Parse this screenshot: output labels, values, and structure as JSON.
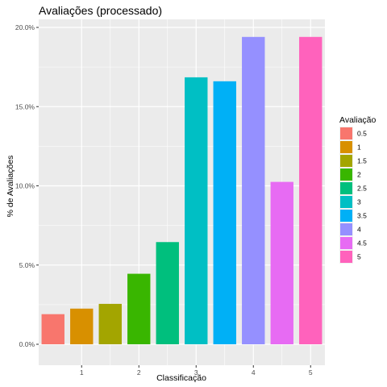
{
  "chart_data": {
    "type": "bar",
    "title": "Avaliações (processado)",
    "xlabel": "Classificação",
    "ylabel": "% de Avaliações",
    "x": [
      0.5,
      1,
      1.5,
      2,
      2.5,
      3,
      3.5,
      4,
      4.5,
      5
    ],
    "values": [
      1.9,
      2.25,
      2.55,
      4.45,
      6.45,
      16.85,
      16.6,
      19.4,
      10.25,
      19.4
    ],
    "xlim": [
      0.25,
      5.25
    ],
    "ylim": [
      0,
      20
    ],
    "x_ticks": [
      {
        "value": 1,
        "label": "1"
      },
      {
        "value": 2,
        "label": "2"
      },
      {
        "value": 3,
        "label": "3"
      },
      {
        "value": 4,
        "label": "4"
      },
      {
        "value": 5,
        "label": "5"
      }
    ],
    "y_ticks": [
      {
        "value": 0,
        "label": "0.0%"
      },
      {
        "value": 5,
        "label": "5.0%"
      },
      {
        "value": 10,
        "label": "10.0%"
      },
      {
        "value": 15,
        "label": "15.0%"
      },
      {
        "value": 20,
        "label": "20.0%"
      }
    ],
    "grid": true,
    "legend": {
      "title": "Avaliação",
      "placement": "right",
      "entries": [
        "0.5",
        "1",
        "1.5",
        "2",
        "2.5",
        "3",
        "3.5",
        "4",
        "4.5",
        "5"
      ]
    },
    "colors": [
      "#F8766D",
      "#D89000",
      "#A3A500",
      "#39B600",
      "#00BF7D",
      "#00BFC4",
      "#00B0F6",
      "#9590FF",
      "#E76BF3",
      "#FF62BC"
    ],
    "panel_background": "#EBEBEB",
    "grid_color": "#FFFFFF"
  }
}
